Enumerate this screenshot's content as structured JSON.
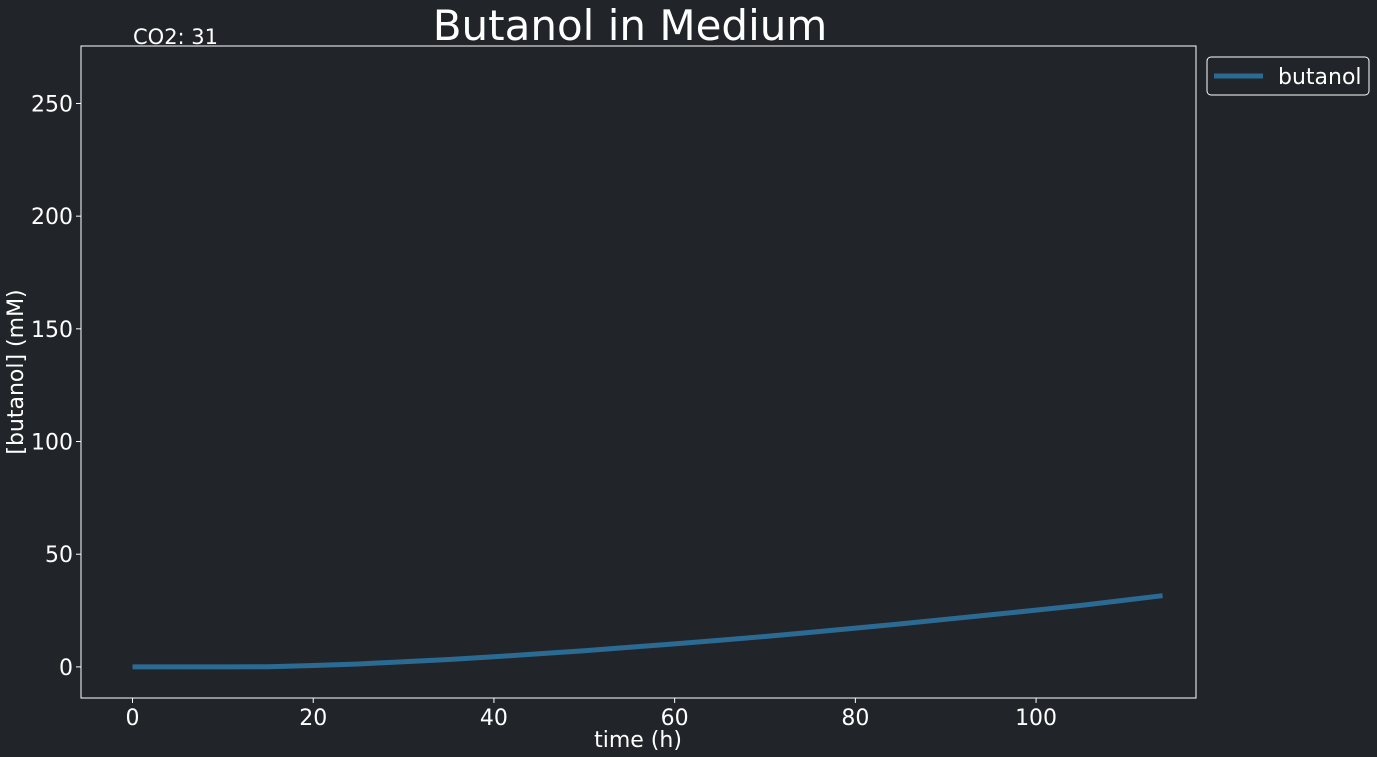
{
  "chart_data": {
    "type": "line",
    "title": "Butanol in Medium",
    "annotation": "CO2: 31",
    "xlabel": "time (h)",
    "ylabel": "[butanol] (mM)",
    "xlim": [
      -5.7,
      117.7
    ],
    "ylim": [
      -13.8,
      275.5
    ],
    "xticks": [
      0,
      20,
      40,
      60,
      80,
      100
    ],
    "yticks": [
      0,
      50,
      100,
      150,
      200,
      250
    ],
    "grid": false,
    "legend_position": "outside-top-right",
    "series": [
      {
        "name": "butanol",
        "color": "#2b6a93",
        "x": [
          0,
          5,
          10,
          15,
          20,
          25,
          30,
          35,
          40,
          45,
          50,
          55,
          60,
          65,
          70,
          75,
          80,
          85,
          90,
          95,
          100,
          105,
          110,
          114
        ],
        "y": [
          0,
          0,
          0,
          0.1,
          0.6,
          1.3,
          2.3,
          3.3,
          4.5,
          5.8,
          7.2,
          8.7,
          10.2,
          11.8,
          13.5,
          15.3,
          17.2,
          19.1,
          21.1,
          23.1,
          25.2,
          27.3,
          29.7,
          31.6
        ]
      }
    ]
  },
  "colors": {
    "background": "#212429",
    "axes": "#ffffff",
    "text": "#ffffff"
  }
}
